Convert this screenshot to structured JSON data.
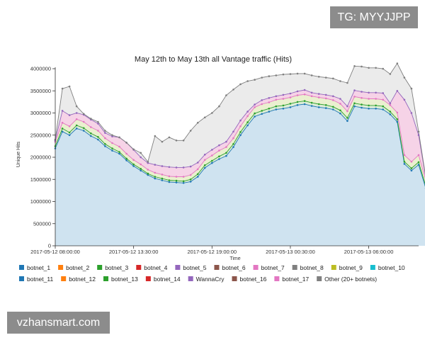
{
  "watermarks": {
    "top": "TG: MYYJJPP",
    "bottom": "vzhansmart.com"
  },
  "chart_data": {
    "type": "area",
    "title": "May 12th to May 13th all Vantage traffic (Hits)",
    "xlabel": "Time",
    "ylabel": "Unique Hits",
    "ylim": [
      0,
      4000000
    ],
    "yticks": [
      0,
      500000,
      1000000,
      1500000,
      2000000,
      2500000,
      3000000,
      3500000,
      4000000
    ],
    "ytick_labels": [
      "0",
      "500000",
      "1000000",
      "1500000",
      "2000000",
      "2500000",
      "3000000",
      "3500000",
      "4000000"
    ],
    "xticks": [
      0,
      11,
      22,
      33,
      44
    ],
    "xtick_labels": [
      "2017-05-12 08:00:00",
      "2017-05-12 13:30:00",
      "2017-05-12 19:00:00",
      "2017-05-13 00:30:00",
      "2017-05-13 06:00:00"
    ],
    "x_range": [
      0,
      51
    ],
    "legend_position": "bottom",
    "grid": false,
    "series_order_note_free": true,
    "legend": [
      {
        "name": "botnet_1",
        "color": "#1f77b4"
      },
      {
        "name": "botnet_2",
        "color": "#ff7f0e"
      },
      {
        "name": "botnet_3",
        "color": "#2ca02c"
      },
      {
        "name": "botnet_4",
        "color": "#d62728"
      },
      {
        "name": "botnet_5",
        "color": "#9467bd"
      },
      {
        "name": "botnet_6",
        "color": "#8c564b"
      },
      {
        "name": "botnet_7",
        "color": "#e377c2"
      },
      {
        "name": "botnet_8",
        "color": "#7f7f7f"
      },
      {
        "name": "botnet_9",
        "color": "#bcbd22"
      },
      {
        "name": "botnet_10",
        "color": "#17becf"
      },
      {
        "name": "botnet_11",
        "color": "#1f77b4"
      },
      {
        "name": "botnet_12",
        "color": "#ff7f0e"
      },
      {
        "name": "botnet_13",
        "color": "#2ca02c"
      },
      {
        "name": "botnet_14",
        "color": "#d62728"
      },
      {
        "name": "WannaCry",
        "color": "#9467bd"
      },
      {
        "name": "botnet_16",
        "color": "#8c564b"
      },
      {
        "name": "botnet_17",
        "color": "#e377c2"
      },
      {
        "name": "Other (20+ botnets)",
        "color": "#7f7f7f"
      }
    ],
    "series": [
      {
        "name": "botnet_1",
        "color": "#1f77b4",
        "values": [
          2200000,
          2580000,
          2500000,
          2650000,
          2600000,
          2480000,
          2400000,
          2250000,
          2150000,
          2080000,
          1930000,
          1800000,
          1700000,
          1600000,
          1520000,
          1480000,
          1440000,
          1430000,
          1420000,
          1450000,
          1560000,
          1760000,
          1870000,
          1960000,
          2030000,
          2230000,
          2500000,
          2720000,
          2920000,
          2980000,
          3030000,
          3080000,
          3100000,
          3130000,
          3180000,
          3200000,
          3160000,
          3130000,
          3110000,
          3080000,
          2990000,
          2820000,
          3150000,
          3120000,
          3100000,
          3100000,
          3080000,
          2970000,
          2800000,
          1850000,
          1700000,
          1830000,
          1300000
        ]
      },
      {
        "name": "botnet_3",
        "color": "#2ca02c",
        "values": [
          2250000,
          2650000,
          2560000,
          2720000,
          2660000,
          2540000,
          2460000,
          2300000,
          2200000,
          2120000,
          1970000,
          1840000,
          1740000,
          1630000,
          1560000,
          1520000,
          1480000,
          1470000,
          1460000,
          1500000,
          1620000,
          1820000,
          1920000,
          2020000,
          2100000,
          2300000,
          2570000,
          2790000,
          2990000,
          3050000,
          3100000,
          3150000,
          3170000,
          3210000,
          3250000,
          3270000,
          3230000,
          3200000,
          3180000,
          3140000,
          3060000,
          2890000,
          3220000,
          3190000,
          3170000,
          3170000,
          3150000,
          3030000,
          2860000,
          1900000,
          1750000,
          1890000,
          1350000
        ]
      },
      {
        "name": "botnet_7",
        "color": "#e377c2",
        "values": [
          2350000,
          2780000,
          2700000,
          2860000,
          2800000,
          2680000,
          2600000,
          2430000,
          2320000,
          2240000,
          2080000,
          1940000,
          1840000,
          1720000,
          1650000,
          1610000,
          1570000,
          1560000,
          1560000,
          1600000,
          1730000,
          1940000,
          2040000,
          2150000,
          2230000,
          2430000,
          2700000,
          2930000,
          3130000,
          3200000,
          3240000,
          3300000,
          3320000,
          3350000,
          3400000,
          3420000,
          3380000,
          3350000,
          3330000,
          3290000,
          3210000,
          3040000,
          3370000,
          3340000,
          3320000,
          3320000,
          3300000,
          3180000,
          3010000,
          2050000,
          1900000,
          2050000,
          1480000
        ]
      },
      {
        "name": "WannaCry",
        "color": "#9467bd",
        "values": [
          2380000,
          3050000,
          2950000,
          3000000,
          2960000,
          2850000,
          2760000,
          2550000,
          2470000,
          2450000,
          2330000,
          2170000,
          2000000,
          1870000,
          1830000,
          1800000,
          1780000,
          1770000,
          1770000,
          1790000,
          1880000,
          2060000,
          2170000,
          2270000,
          2350000,
          2580000,
          2830000,
          3030000,
          3190000,
          3290000,
          3340000,
          3380000,
          3410000,
          3440000,
          3490000,
          3520000,
          3460000,
          3430000,
          3410000,
          3380000,
          3320000,
          3150000,
          3510000,
          3480000,
          3460000,
          3460000,
          3450000,
          3220000,
          3500000,
          3300000,
          3000000,
          2500000,
          1530000
        ]
      },
      {
        "name": "Other (20+ botnets)",
        "color": "#7f7f7f",
        "values": [
          2400000,
          3550000,
          3600000,
          3150000,
          2980000,
          2870000,
          2800000,
          2600000,
          2500000,
          2450000,
          2330000,
          2180000,
          2100000,
          1900000,
          2480000,
          2350000,
          2450000,
          2380000,
          2380000,
          2600000,
          2780000,
          2900000,
          3000000,
          3150000,
          3400000,
          3530000,
          3650000,
          3720000,
          3750000,
          3800000,
          3830000,
          3850000,
          3870000,
          3880000,
          3890000,
          3890000,
          3850000,
          3820000,
          3800000,
          3780000,
          3720000,
          3680000,
          4060000,
          4050000,
          4020000,
          4020000,
          4000000,
          3880000,
          4120000,
          3800000,
          3550000,
          2580000,
          1550000
        ]
      }
    ]
  }
}
